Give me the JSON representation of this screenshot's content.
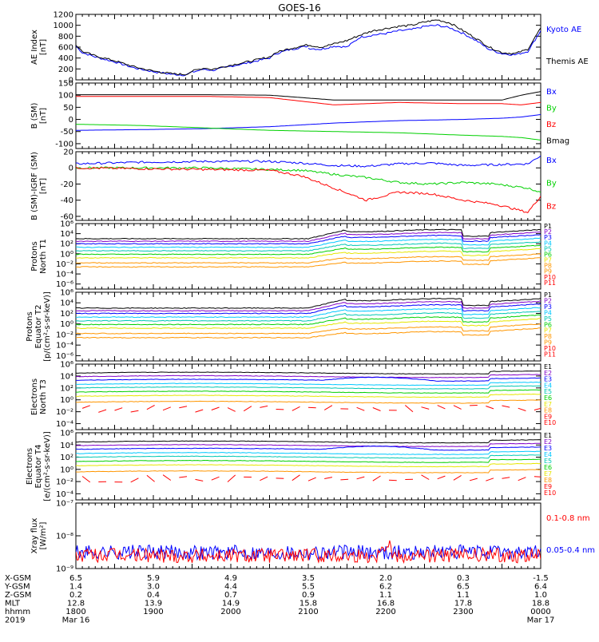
{
  "title": "GOES-16",
  "colors": {
    "black": "#000000",
    "blue": "#0000ff",
    "red": "#ff0000",
    "green": "#00d000",
    "cyan": "#00c8ff",
    "teal": "#00c8b4",
    "lime": "#00ff00",
    "yellow": "#e6e600",
    "orange": "#ff9600",
    "darkorange": "#e67800",
    "purple": "#8200c8"
  },
  "chart_data": [
    {
      "type": "line",
      "panel": "ae",
      "ylabel": [
        "AE Index",
        "[nT]"
      ],
      "ylim": [
        0,
        1200
      ],
      "yticks": [
        "0",
        "200",
        "400",
        "600",
        "800",
        "1000",
        "1200"
      ],
      "legend": [
        {
          "name": "Kyoto AE",
          "color": "#0000ff"
        },
        {
          "name": "Themis AE",
          "color": "#000000"
        }
      ],
      "series": [
        {
          "name": "Kyoto AE",
          "x": [
            0,
            10,
            30,
            60,
            90,
            120,
            150,
            170,
            180,
            200,
            210,
            240,
            270,
            300,
            310,
            330,
            350,
            360
          ],
          "values": [
            620,
            500,
            420,
            330,
            220,
            150,
            100,
            90,
            140,
            200,
            170,
            250,
            320,
            400,
            480,
            550,
            600,
            620
          ]
        },
        {
          "name": "Kyoto AE (2)",
          "x": [
            360,
            380,
            400,
            420,
            440,
            460,
            480,
            500,
            520,
            540,
            560,
            580,
            600,
            620,
            640,
            660,
            680,
            700,
            720
          ],
          "values": [
            580,
            560,
            620,
            600,
            780,
            820,
            850,
            900,
            920,
            980,
            1000,
            950,
            850,
            720,
            560,
            480,
            460,
            520,
            900
          ]
        },
        {
          "name": "Themis AE",
          "x": [
            0,
            10,
            30,
            60,
            90,
            120,
            150,
            170,
            180,
            200,
            210,
            240,
            270,
            300,
            310,
            330,
            350,
            360,
            380,
            400,
            420,
            440,
            460,
            480,
            500,
            520,
            540,
            560,
            580,
            600,
            620,
            640,
            660,
            680,
            700,
            720
          ],
          "values": [
            640,
            520,
            440,
            350,
            240,
            160,
            110,
            100,
            160,
            220,
            190,
            270,
            340,
            420,
            500,
            570,
            620,
            640,
            600,
            660,
            720,
            820,
            900,
            940,
            980,
            1000,
            1060,
            1100,
            1040,
            900,
            760,
            600,
            500,
            480,
            560,
            950
          ]
        }
      ]
    },
    {
      "type": "line",
      "panel": "bsm",
      "ylabel": [
        "B (SM)",
        "[nT]"
      ],
      "ylim": [
        -120,
        150
      ],
      "yticks": [
        "-100",
        "-50",
        "0",
        "50",
        "100",
        "150"
      ],
      "legend": [
        {
          "name": "Bx",
          "color": "#0000ff"
        },
        {
          "name": "By",
          "color": "#00d000"
        },
        {
          "name": "Bz",
          "color": "#ff0000"
        },
        {
          "name": "Bmag",
          "color": "#000000"
        }
      ],
      "series": [
        {
          "name": "Bmag",
          "x": [
            0,
            100,
            200,
            300,
            400,
            500,
            600,
            660,
            690,
            720
          ],
          "values": [
            102,
            102,
            102,
            100,
            80,
            80,
            80,
            80,
            100,
            115
          ]
        },
        {
          "name": "Bz",
          "x": [
            0,
            100,
            200,
            300,
            400,
            500,
            600,
            660,
            690,
            720
          ],
          "values": [
            95,
            95,
            95,
            90,
            60,
            70,
            65,
            65,
            60,
            70
          ]
        },
        {
          "name": "Bx",
          "x": [
            0,
            100,
            200,
            300,
            400,
            500,
            600,
            660,
            690,
            720
          ],
          "values": [
            -45,
            -42,
            -38,
            -30,
            -15,
            -5,
            0,
            5,
            10,
            20
          ]
        },
        {
          "name": "By",
          "x": [
            0,
            100,
            200,
            300,
            400,
            500,
            600,
            660,
            690,
            720
          ],
          "values": [
            -20,
            -25,
            -35,
            -45,
            -50,
            -55,
            -65,
            -70,
            -75,
            -85
          ]
        }
      ]
    },
    {
      "type": "line",
      "panel": "bigrf",
      "ylabel": [
        "B (SM)-IGRF (SM)",
        "[nT]"
      ],
      "ylim": [
        -65,
        20
      ],
      "yticks": [
        "-60",
        "-40",
        "-20",
        "0",
        "20"
      ],
      "legend": [
        {
          "name": "Bx",
          "color": "#0000ff"
        },
        {
          "name": "By",
          "color": "#00d000"
        },
        {
          "name": "Bz",
          "color": "#ff0000"
        }
      ],
      "series": [
        {
          "name": "Bx",
          "x": [
            0,
            100,
            200,
            300,
            350,
            400,
            450,
            500,
            550,
            600,
            650,
            700,
            720
          ],
          "values": [
            5,
            7,
            8,
            8,
            6,
            3,
            2,
            5,
            6,
            3,
            4,
            5,
            15
          ]
        },
        {
          "name": "By",
          "x": [
            0,
            100,
            200,
            300,
            350,
            400,
            450,
            500,
            550,
            600,
            650,
            700,
            720
          ],
          "values": [
            0,
            0,
            0,
            -2,
            -3,
            -8,
            -12,
            -18,
            -20,
            -18,
            -20,
            -25,
            -30
          ]
        },
        {
          "name": "Bz",
          "x": [
            0,
            100,
            200,
            300,
            350,
            400,
            450,
            500,
            550,
            600,
            650,
            700,
            720
          ],
          "values": [
            0,
            -1,
            -2,
            -3,
            -10,
            -25,
            -40,
            -30,
            -32,
            -40,
            -45,
            -55,
            -35
          ]
        }
      ]
    },
    {
      "type": "line",
      "panel": "p1",
      "ylabel": [
        "Protons",
        "North T1"
      ],
      "ylog": true,
      "ylim": [
        -7,
        6
      ],
      "yticks": [
        "10⁻⁶",
        "10⁻⁴",
        "10⁻²",
        "10⁰",
        "10²",
        "10⁴",
        "10⁶"
      ],
      "legend": [
        {
          "name": "P1",
          "color": "#000000"
        },
        {
          "name": "P2",
          "color": "#8200c8"
        },
        {
          "name": "P3",
          "color": "#0000ff"
        },
        {
          "name": "P4",
          "color": "#00c8ff"
        },
        {
          "name": "P5",
          "color": "#00c8b4"
        },
        {
          "name": "P6",
          "color": "#00d000"
        },
        {
          "name": "P7",
          "color": "#e6e600"
        },
        {
          "name": "P8",
          "color": "#ff9600"
        },
        {
          "name": "P9",
          "color": "#ff9600"
        },
        {
          "name": "P10",
          "color": "#ff0000"
        },
        {
          "name": "P11",
          "color": "#ff0000"
        }
      ]
    },
    {
      "type": "line",
      "panel": "p2",
      "ylabel": [
        "Protons",
        "Equator T2",
        "[p/(cm²-s-sr-keV)]"
      ],
      "ylog": true,
      "ylim": [
        -7,
        6
      ],
      "yticks": [
        "10⁻⁶",
        "10⁻⁴",
        "10⁻²",
        "10⁰",
        "10²",
        "10⁴",
        "10⁶"
      ],
      "legend": [
        {
          "name": "P1",
          "color": "#000000"
        },
        {
          "name": "P2",
          "color": "#8200c8"
        },
        {
          "name": "P3",
          "color": "#0000ff"
        },
        {
          "name": "P4",
          "color": "#00c8ff"
        },
        {
          "name": "P5",
          "color": "#00c8b4"
        },
        {
          "name": "P6",
          "color": "#00d000"
        },
        {
          "name": "P7",
          "color": "#e6e600"
        },
        {
          "name": "P8",
          "color": "#ff9600"
        },
        {
          "name": "P9",
          "color": "#ff9600"
        },
        {
          "name": "P10",
          "color": "#ff0000"
        },
        {
          "name": "P11",
          "color": "#ff0000"
        }
      ]
    },
    {
      "type": "line",
      "panel": "e1",
      "ylabel": [
        "Electrons",
        "North T3"
      ],
      "ylog": true,
      "ylim": [
        -5,
        6
      ],
      "yticks": [
        "10⁻⁴",
        "10⁻²",
        "10⁰",
        "10²",
        "10⁴",
        "10⁶"
      ],
      "legend": [
        {
          "name": "E1",
          "color": "#000000"
        },
        {
          "name": "E2",
          "color": "#8200c8"
        },
        {
          "name": "E3",
          "color": "#0000ff"
        },
        {
          "name": "E4",
          "color": "#00c8ff"
        },
        {
          "name": "E5",
          "color": "#00c8b4"
        },
        {
          "name": "E6",
          "color": "#00d000"
        },
        {
          "name": "E7",
          "color": "#e6e600"
        },
        {
          "name": "E8",
          "color": "#ff9600"
        },
        {
          "name": "E9",
          "color": "#ff0000"
        },
        {
          "name": "E10",
          "color": "#ff0000"
        }
      ]
    },
    {
      "type": "line",
      "panel": "e2",
      "ylabel": [
        "Electrons",
        "Equator T4",
        "[e/(cm²-s-sr-keV)]"
      ],
      "ylog": true,
      "ylim": [
        -5,
        6
      ],
      "yticks": [
        "10⁻⁴",
        "10⁻²",
        "10⁰",
        "10²",
        "10⁴",
        "10⁶"
      ],
      "legend": [
        {
          "name": "E1",
          "color": "#000000"
        },
        {
          "name": "E2",
          "color": "#8200c8"
        },
        {
          "name": "E3",
          "color": "#0000ff"
        },
        {
          "name": "E4",
          "color": "#00c8ff"
        },
        {
          "name": "E5",
          "color": "#00c8b4"
        },
        {
          "name": "E6",
          "color": "#00d000"
        },
        {
          "name": "E7",
          "color": "#e6e600"
        },
        {
          "name": "E8",
          "color": "#ff9600"
        },
        {
          "name": "E9",
          "color": "#ff0000"
        },
        {
          "name": "E10",
          "color": "#ff0000"
        }
      ]
    },
    {
      "type": "line",
      "panel": "xray",
      "ylabel": [
        "Xray flux",
        "[W/m²]"
      ],
      "ylog": true,
      "ylim": [
        -9,
        -7
      ],
      "yticks": [
        "10⁻⁹",
        "10⁻⁸",
        "10⁻⁷"
      ],
      "legend": [
        {
          "name": "0.1-0.8 nm",
          "color": "#ff0000"
        },
        {
          "name": "0.05-0.4 nm",
          "color": "#0000ff"
        }
      ]
    }
  ],
  "footer": {
    "labels": [
      "X-GSM",
      "Y-GSM",
      "Z-GSM",
      "MLT",
      "hhmm",
      "2019"
    ],
    "columns": [
      {
        "rows": [
          "6.5",
          "1.4",
          "0.2",
          "12.8",
          "1800",
          "Mar 16"
        ]
      },
      {
        "rows": [
          "5.9",
          "3.0",
          "0.4",
          "13.9",
          "1900",
          ""
        ]
      },
      {
        "rows": [
          "4.9",
          "4.4",
          "0.7",
          "14.9",
          "2000",
          ""
        ]
      },
      {
        "rows": [
          "3.5",
          "5.5",
          "0.9",
          "15.8",
          "2100",
          ""
        ]
      },
      {
        "rows": [
          "2.0",
          "6.2",
          "1.1",
          "16.8",
          "2200",
          ""
        ]
      },
      {
        "rows": [
          "0.3",
          "6.5",
          "1.1",
          "17.8",
          "2300",
          ""
        ]
      },
      {
        "rows": [
          "-1.5",
          "6.4",
          "1.0",
          "18.8",
          "0000",
          "Mar 17"
        ]
      }
    ]
  }
}
